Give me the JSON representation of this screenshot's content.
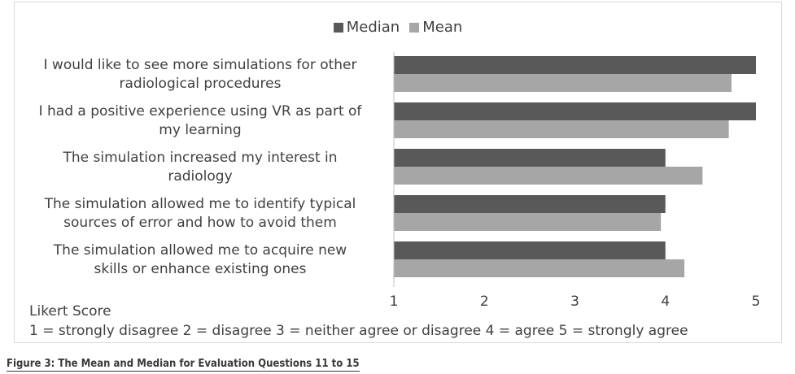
{
  "chart_data": {
    "type": "bar",
    "orientation": "horizontal",
    "categories": [
      [
        "I would like to see more simulations for other",
        "radiological procedures"
      ],
      [
        "I had a positive experience using VR as part of",
        "my learning"
      ],
      [
        "The simulation increased my interest in",
        "radiology"
      ],
      [
        "The simulation allowed me to identify typical",
        "sources of error and how to avoid them"
      ],
      [
        "The simulation allowed me to acquire new",
        "skills or enhance existing ones"
      ]
    ],
    "series": [
      {
        "name": "Median",
        "color": "#595959",
        "values": [
          5,
          5,
          4,
          4,
          4
        ]
      },
      {
        "name": "Mean",
        "color": "#a6a6a6",
        "values": [
          4.73,
          4.7,
          4.41,
          3.95,
          4.21
        ]
      }
    ],
    "xlim": [
      1,
      5
    ],
    "xticks": [
      "1",
      "2",
      "3",
      "4",
      "5"
    ],
    "legend_position": "top",
    "grid": false
  },
  "axis_title": "Likert Score",
  "axis_scale_note": "1 = strongly disagree 2 = disagree 3 = neither agree or disagree 4 = agree 5 = strongly agree",
  "caption": "Figure 3: The Mean and Median for Evaluation Questions 11 to 15"
}
